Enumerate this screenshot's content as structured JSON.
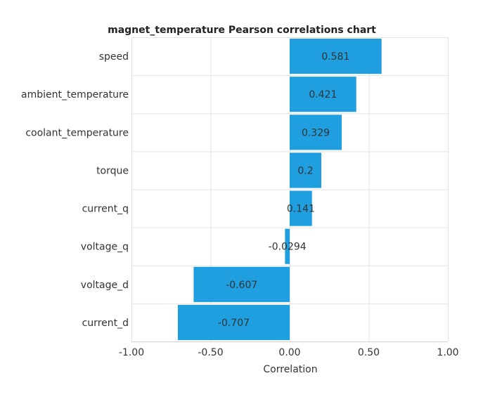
{
  "chart_data": {
    "type": "bar",
    "orientation": "horizontal",
    "title": "magnet_temperature Pearson correlations chart",
    "xlabel": "Correlation",
    "ylabel": "",
    "xlim": [
      -1.0,
      1.0
    ],
    "ticks": [
      -1.0,
      -0.5,
      0.0,
      0.5,
      1.0
    ],
    "tick_labels": [
      "-1.00",
      "-0.50",
      "0.00",
      "0.50",
      "1.00"
    ],
    "categories": [
      "speed",
      "ambient_temperature",
      "coolant_temperature",
      "torque",
      "current_q",
      "voltage_q",
      "voltage_d",
      "current_d"
    ],
    "values": [
      0.581,
      0.421,
      0.329,
      0.2,
      0.141,
      -0.0294,
      -0.607,
      -0.707
    ],
    "data_labels": [
      "0.581",
      "0.421",
      "0.329",
      "0.2",
      "0.141",
      "-0.0294",
      "-0.607",
      "-0.707"
    ],
    "bar_color": "#1f9fe0",
    "grid": true,
    "legend": "none"
  }
}
